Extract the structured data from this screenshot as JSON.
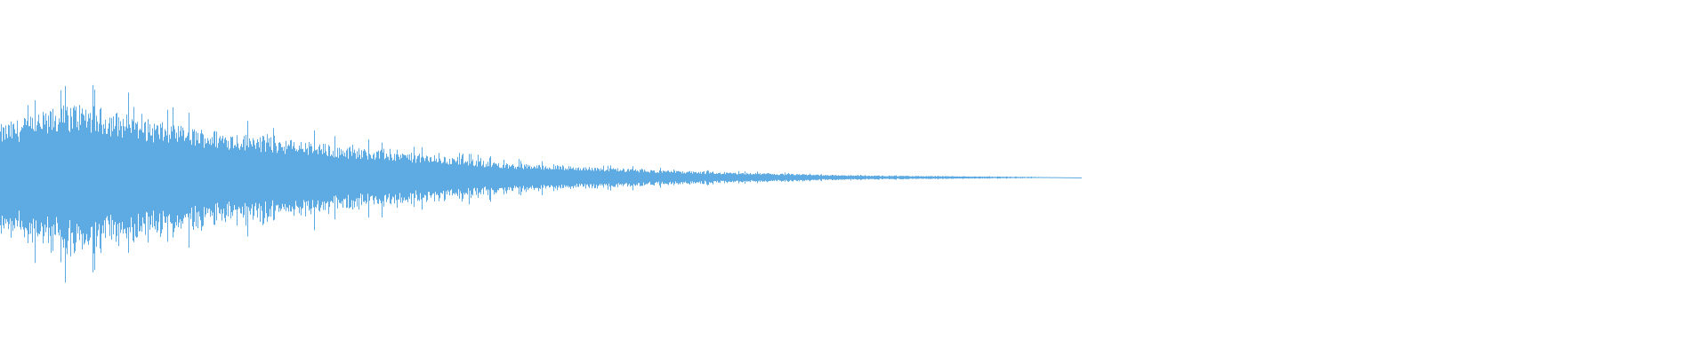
{
  "chart_data": {
    "type": "area",
    "description_of_axes": "",
    "color": "#5dabe2",
    "background": "#ffffff",
    "ylim": [
      -1,
      1
    ],
    "xlim": [
      0,
      1
    ],
    "grid": false,
    "legend": "none",
    "envelope": [
      {
        "t": 0.0,
        "amp": 0.3
      },
      {
        "t": 0.044,
        "amp": 0.43
      },
      {
        "t": 0.1,
        "amp": 0.3
      },
      {
        "t": 0.2,
        "amp": 0.18
      },
      {
        "t": 0.3,
        "amp": 0.08
      },
      {
        "t": 0.4,
        "amp": 0.035
      },
      {
        "t": 0.5,
        "amp": 0.012
      },
      {
        "t": 0.6,
        "amp": 0.004
      },
      {
        "t": 0.633,
        "amp": 0.0
      },
      {
        "t": 1.0,
        "amp": 0.0
      }
    ]
  }
}
